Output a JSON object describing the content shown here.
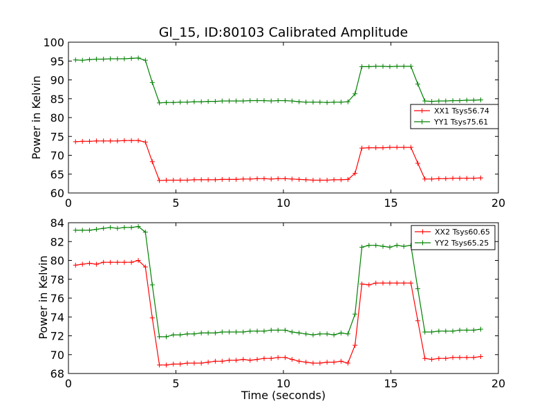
{
  "chart_data": [
    {
      "type": "line",
      "title": "Gl_15, ID:80103 Calibrated Amplitude",
      "xlabel": "",
      "ylabel": "Power in Kelvin",
      "xlim": [
        0,
        20
      ],
      "ylim": [
        60,
        100
      ],
      "xticks": [
        "0",
        "5",
        "10",
        "15",
        "20"
      ],
      "yticks": [
        "60",
        "65",
        "70",
        "75",
        "80",
        "85",
        "90",
        "95",
        "100"
      ],
      "legend_position": "right",
      "x": [
        0.33,
        0.65,
        0.98,
        1.3,
        1.63,
        1.95,
        2.28,
        2.6,
        2.93,
        3.25,
        3.58,
        3.9,
        4.23,
        4.55,
        4.88,
        5.2,
        5.53,
        5.85,
        6.18,
        6.5,
        6.83,
        7.15,
        7.48,
        7.8,
        8.13,
        8.45,
        8.78,
        9.1,
        9.43,
        9.75,
        10.08,
        10.4,
        10.73,
        11.05,
        11.38,
        11.7,
        12.03,
        12.35,
        12.68,
        13.0,
        13.33,
        13.65,
        13.98,
        14.3,
        14.63,
        14.95,
        15.28,
        15.6,
        15.93,
        16.25,
        16.58,
        16.9,
        17.23,
        17.55,
        17.88,
        18.2,
        18.53,
        18.85,
        19.18
      ],
      "series": [
        {
          "name": "XX1 Tsys56.74",
          "color": "#ff0000",
          "values": [
            73.6,
            73.7,
            73.7,
            73.8,
            73.8,
            73.8,
            73.8,
            73.9,
            73.9,
            73.9,
            73.5,
            68.3,
            63.3,
            63.4,
            63.4,
            63.4,
            63.4,
            63.5,
            63.5,
            63.5,
            63.5,
            63.6,
            63.6,
            63.6,
            63.7,
            63.7,
            63.8,
            63.8,
            63.7,
            63.8,
            63.8,
            63.7,
            63.6,
            63.5,
            63.4,
            63.4,
            63.4,
            63.5,
            63.5,
            63.6,
            65.2,
            71.9,
            72.0,
            72.0,
            72.0,
            72.1,
            72.1,
            72.1,
            72.1,
            67.9,
            63.7,
            63.7,
            63.8,
            63.8,
            63.9,
            63.9,
            63.9,
            63.9,
            64.0
          ]
        },
        {
          "name": "YY1 Tsys75.61",
          "color": "#008000",
          "values": [
            95.3,
            95.2,
            95.4,
            95.5,
            95.5,
            95.6,
            95.6,
            95.6,
            95.7,
            95.8,
            95.2,
            89.3,
            83.9,
            84.0,
            84.0,
            84.1,
            84.1,
            84.2,
            84.2,
            84.3,
            84.3,
            84.4,
            84.4,
            84.4,
            84.4,
            84.5,
            84.5,
            84.5,
            84.4,
            84.5,
            84.5,
            84.4,
            84.2,
            84.1,
            84.1,
            84.1,
            84.0,
            84.1,
            84.1,
            84.2,
            86.3,
            93.5,
            93.5,
            93.6,
            93.6,
            93.5,
            93.6,
            93.6,
            93.6,
            88.9,
            84.4,
            84.3,
            84.4,
            84.4,
            84.5,
            84.5,
            84.6,
            84.6,
            84.7
          ]
        }
      ]
    },
    {
      "type": "line",
      "title": "",
      "xlabel": "Time (seconds)",
      "ylabel": "Power in Kelvin",
      "xlim": [
        0,
        20
      ],
      "ylim": [
        68,
        84
      ],
      "xticks": [
        "0",
        "5",
        "10",
        "15",
        "20"
      ],
      "yticks": [
        "68",
        "70",
        "72",
        "74",
        "76",
        "78",
        "80",
        "82",
        "84"
      ],
      "legend_position": "top-right",
      "x": [
        0.33,
        0.65,
        0.98,
        1.3,
        1.63,
        1.95,
        2.28,
        2.6,
        2.93,
        3.25,
        3.58,
        3.9,
        4.23,
        4.55,
        4.88,
        5.2,
        5.53,
        5.85,
        6.18,
        6.5,
        6.83,
        7.15,
        7.48,
        7.8,
        8.13,
        8.45,
        8.78,
        9.1,
        9.43,
        9.75,
        10.08,
        10.4,
        10.73,
        11.05,
        11.38,
        11.7,
        12.03,
        12.35,
        12.68,
        13.0,
        13.33,
        13.65,
        13.98,
        14.3,
        14.63,
        14.95,
        15.28,
        15.6,
        15.93,
        16.25,
        16.58,
        16.9,
        17.23,
        17.55,
        17.88,
        18.2,
        18.53,
        18.85,
        19.18
      ],
      "series": [
        {
          "name": "XX2 Tsys60.65",
          "color": "#ff0000",
          "values": [
            79.5,
            79.6,
            79.7,
            79.6,
            79.8,
            79.8,
            79.8,
            79.8,
            79.8,
            80.0,
            79.3,
            73.9,
            68.9,
            68.9,
            69.0,
            69.0,
            69.1,
            69.1,
            69.1,
            69.2,
            69.3,
            69.3,
            69.4,
            69.4,
            69.5,
            69.4,
            69.5,
            69.6,
            69.6,
            69.7,
            69.7,
            69.5,
            69.3,
            69.2,
            69.1,
            69.1,
            69.2,
            69.2,
            69.3,
            69.1,
            71.0,
            77.5,
            77.4,
            77.6,
            77.6,
            77.6,
            77.6,
            77.6,
            77.6,
            73.6,
            69.6,
            69.5,
            69.6,
            69.6,
            69.7,
            69.7,
            69.7,
            69.7,
            69.8
          ]
        },
        {
          "name": "YY2 Tsys65.25",
          "color": "#008000",
          "values": [
            83.2,
            83.2,
            83.2,
            83.3,
            83.4,
            83.5,
            83.4,
            83.5,
            83.5,
            83.6,
            83.0,
            77.4,
            71.9,
            71.9,
            72.1,
            72.1,
            72.2,
            72.2,
            72.3,
            72.3,
            72.3,
            72.4,
            72.4,
            72.4,
            72.4,
            72.5,
            72.5,
            72.5,
            72.6,
            72.6,
            72.6,
            72.4,
            72.3,
            72.2,
            72.1,
            72.2,
            72.2,
            72.1,
            72.3,
            72.2,
            74.3,
            81.4,
            81.6,
            81.6,
            81.5,
            81.4,
            81.6,
            81.5,
            81.6,
            77.0,
            72.4,
            72.4,
            72.5,
            72.5,
            72.5,
            72.6,
            72.6,
            72.6,
            72.7
          ]
        }
      ]
    }
  ]
}
